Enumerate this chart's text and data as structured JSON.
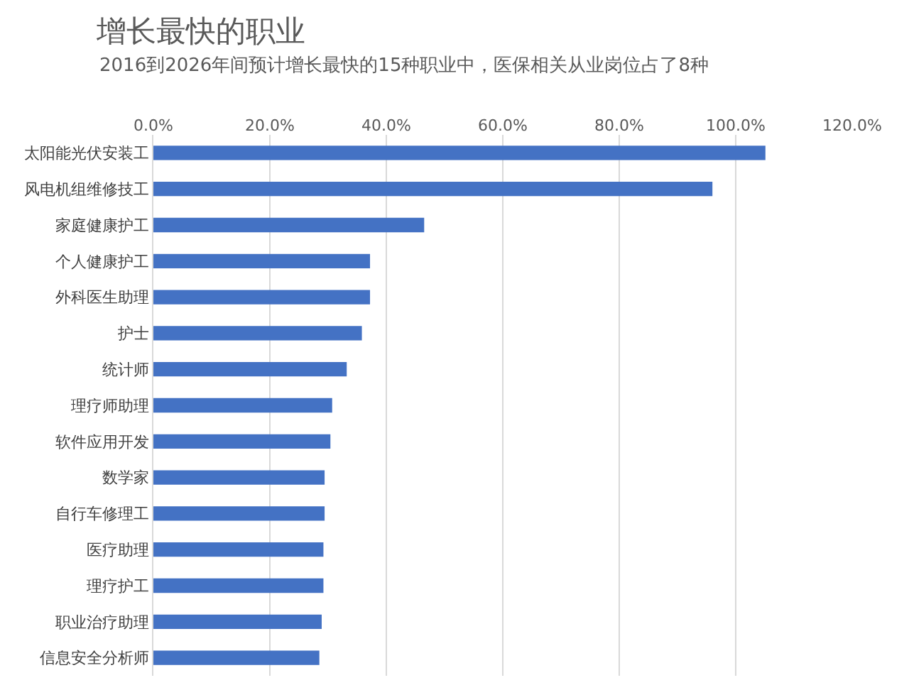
{
  "chart_data": {
    "type": "bar",
    "orientation": "horizontal",
    "title": "增长最快的职业",
    "subtitle": "2016到2026年间预计增长最快的15种职业中，医保相关从业岗位占了8种",
    "categories": [
      "太阳能光伏安装工",
      "风电机组维修技工",
      "家庭健康护工",
      "个人健康护工",
      "外科医生助理",
      "护士",
      "统计师",
      "理疗师助理",
      "软件应用开发",
      "数学家",
      "自行车修理工",
      "医疗助理",
      "理疗护工",
      "职业治疗助理",
      "信息安全分析师"
    ],
    "values": [
      105.1,
      96.0,
      46.5,
      37.2,
      37.2,
      35.8,
      33.2,
      30.7,
      30.4,
      29.4,
      29.4,
      29.2,
      29.2,
      28.9,
      28.5
    ],
    "color": "#4472c4",
    "xlim": [
      0,
      120
    ],
    "xticks": [
      {
        "value": 0,
        "label": "0.0%"
      },
      {
        "value": 20,
        "label": "20.0%"
      },
      {
        "value": 40,
        "label": "40.0%"
      },
      {
        "value": 60,
        "label": "60.0%"
      },
      {
        "value": 80,
        "label": "80.0%"
      },
      {
        "value": 100,
        "label": "100.0%"
      },
      {
        "value": 120,
        "label": "120.0%"
      }
    ],
    "grid": "x"
  }
}
